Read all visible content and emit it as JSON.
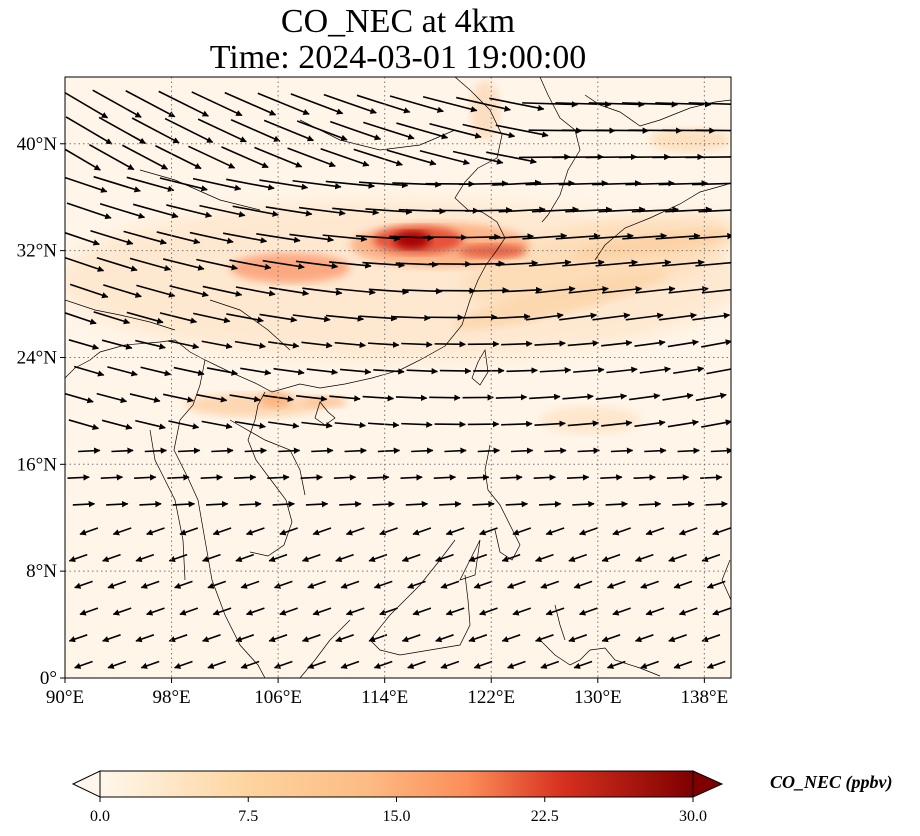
{
  "map": {
    "title_line1": "CO_NEC at 4km",
    "title_line2": "Time: 2024-03-01 19:00:00",
    "lon_range": [
      90,
      140
    ],
    "lat_range": [
      0,
      45
    ],
    "lon_ticks": [
      {
        "value": 90,
        "label": "90°E"
      },
      {
        "value": 98,
        "label": "98°E"
      },
      {
        "value": 106,
        "label": "106°E"
      },
      {
        "value": 114,
        "label": "114°E"
      },
      {
        "value": 122,
        "label": "122°E"
      },
      {
        "value": 130,
        "label": "130°E"
      },
      {
        "value": 138,
        "label": "138°E"
      }
    ],
    "lat_ticks": [
      {
        "value": 0,
        "label": "0°"
      },
      {
        "value": 8,
        "label": "8°N"
      },
      {
        "value": 16,
        "label": "16°N"
      },
      {
        "value": 24,
        "label": "24°N"
      },
      {
        "value": 32,
        "label": "32°N"
      },
      {
        "value": 40,
        "label": "40°N"
      }
    ],
    "gridlines": true,
    "vector_field": "wind arrows, strongest westerly flow north of 24°N",
    "colors": {
      "background": "#fff5e8",
      "low": "#fee6cb",
      "mid": "#fdb07a",
      "high": "#e34a33",
      "max": "#7f0000",
      "coast": "#000000",
      "grid": "#777777"
    }
  },
  "colorbar": {
    "label": "CO_NEC (ppbv)",
    "min": 0,
    "max": 30,
    "extend": "both",
    "cmap": "OrRd",
    "ticks": [
      "0.0",
      "7.5",
      "15.0",
      "22.5",
      "30.0"
    ]
  }
}
